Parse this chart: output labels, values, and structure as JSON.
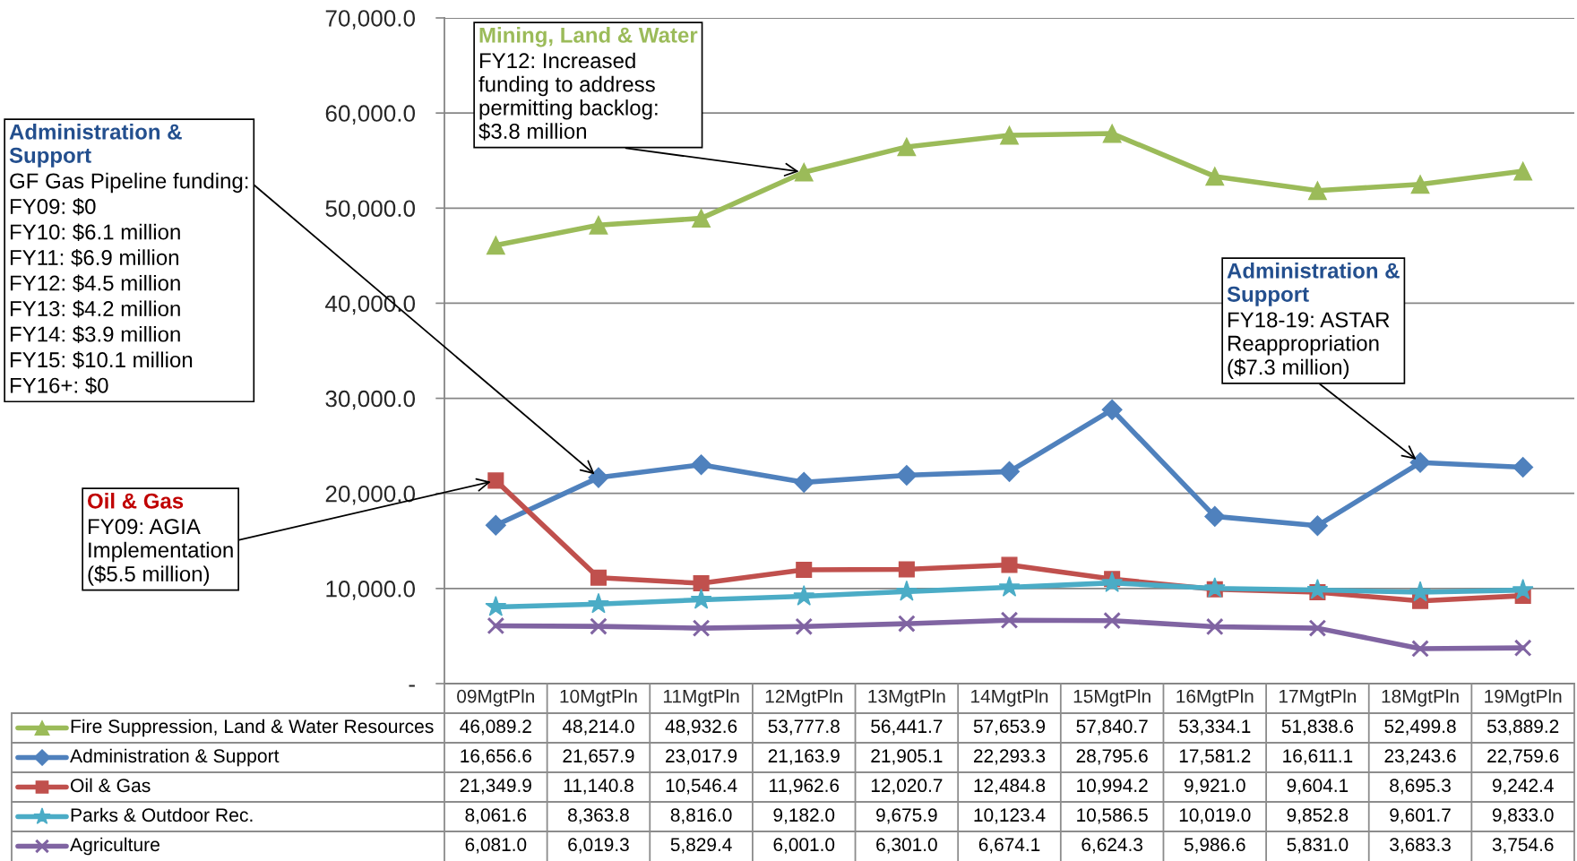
{
  "chart_data": {
    "type": "line",
    "categories": [
      "09MgtPln",
      "10MgtPln",
      "11MgtPln",
      "12MgtPln",
      "13MgtPln",
      "14MgtPln",
      "15MgtPln",
      "16MgtPln",
      "17MgtPln",
      "18MgtPln",
      "19MgtPln"
    ],
    "series": [
      {
        "name": "Fire Suppression, Land & Water Resources",
        "color": "#9BBB59",
        "marker": "triangle",
        "values": [
          46089.2,
          48214.0,
          48932.6,
          53777.8,
          56441.7,
          57653.9,
          57840.7,
          53334.1,
          51838.6,
          52499.8,
          53889.2
        ],
        "value_labels": [
          "46,089.2",
          "48,214.0",
          "48,932.6",
          "53,777.8",
          "56,441.7",
          "57,653.9",
          "57,840.7",
          "53,334.1",
          "51,838.6",
          "52,499.8",
          "53,889.2"
        ]
      },
      {
        "name": "Administration & Support",
        "color": "#4F81BD",
        "marker": "diamond",
        "values": [
          16656.6,
          21657.9,
          23017.9,
          21163.9,
          21905.1,
          22293.3,
          28795.6,
          17581.2,
          16611.1,
          23243.6,
          22759.6
        ],
        "value_labels": [
          "16,656.6",
          "21,657.9",
          "23,017.9",
          "21,163.9",
          "21,905.1",
          "22,293.3",
          "28,795.6",
          "17,581.2",
          "16,611.1",
          "23,243.6",
          "22,759.6"
        ]
      },
      {
        "name": "Oil & Gas",
        "color": "#C0504D",
        "marker": "square",
        "values": [
          21349.9,
          11140.8,
          10546.4,
          11962.6,
          12020.7,
          12484.8,
          10994.2,
          9921.0,
          9604.1,
          8695.3,
          9242.4
        ],
        "value_labels": [
          "21,349.9",
          "11,140.8",
          "10,546.4",
          "11,962.6",
          "12,020.7",
          "12,484.8",
          "10,994.2",
          "9,921.0",
          "9,604.1",
          "8,695.3",
          "9,242.4"
        ]
      },
      {
        "name": "Parks & Outdoor Rec.",
        "color": "#4BACC6",
        "marker": "star",
        "values": [
          8061.6,
          8363.8,
          8816.0,
          9182.0,
          9675.9,
          10123.4,
          10586.5,
          10019.0,
          9852.8,
          9601.7,
          9833.0
        ],
        "value_labels": [
          "8,061.6",
          "8,363.8",
          "8,816.0",
          "9,182.0",
          "9,675.9",
          "10,123.4",
          "10,586.5",
          "10,019.0",
          "9,852.8",
          "9,601.7",
          "9,833.0"
        ]
      },
      {
        "name": "Agriculture",
        "color": "#8064A2",
        "marker": "cross",
        "values": [
          6081.0,
          6019.3,
          5829.4,
          6001.0,
          6301.0,
          6674.1,
          6624.3,
          5986.6,
          5831.0,
          3683.3,
          3754.6
        ],
        "value_labels": [
          "6,081.0",
          "6,019.3",
          "5,829.4",
          "6,001.0",
          "6,301.0",
          "6,674.1",
          "6,624.3",
          "5,986.6",
          "5,831.0",
          "3,683.3",
          "3,754.6"
        ]
      }
    ],
    "ylim": [
      0,
      70000
    ],
    "yticks": [
      {
        "value": 0,
        "label": "-"
      },
      {
        "value": 10000,
        "label": "10,000.0"
      },
      {
        "value": 20000,
        "label": "20,000.0"
      },
      {
        "value": 30000,
        "label": "30,000.0"
      },
      {
        "value": 40000,
        "label": "40,000.0"
      },
      {
        "value": 50000,
        "label": "50,000.0"
      },
      {
        "value": 60000,
        "label": "60,000.0"
      },
      {
        "value": 70000,
        "label": "70,000.0"
      }
    ],
    "grid": "y",
    "legend": "bottom",
    "line_style": "solid",
    "annotations": [
      "Administration &\nSupport",
      {
        "text": "GF Gas Pipeline funding:",
        "x": "10MgtPln",
        "y": 21657.9
      },
      "FY09: $0",
      "FY10: $6.1 million",
      "FY11: $6.9 million",
      "FY12: $4.5 million",
      "FY13: $4.2 million",
      "FY14: $3.9 million",
      "FY15: $10.1 million",
      "FY16+: $0",
      "Oil & Gas",
      {
        "text": "FY09: AGIA\nImplementation\n($5.5 million)",
        "x": "09MgtPln",
        "y": 21349.9
      },
      "Mining, Land & Water",
      {
        "text": "FY12: Increased\nfunding to address\npermitting backlog:\n$3.8 million",
        "x": "12MgtPln",
        "y": 53777.8
      },
      "Administration &\nSupport",
      {
        "text": "FY18-19: ASTAR\nReappropriation\n($7.3 million)",
        "x": "18MgtPln",
        "y": 23243.6
      }
    ]
  }
}
